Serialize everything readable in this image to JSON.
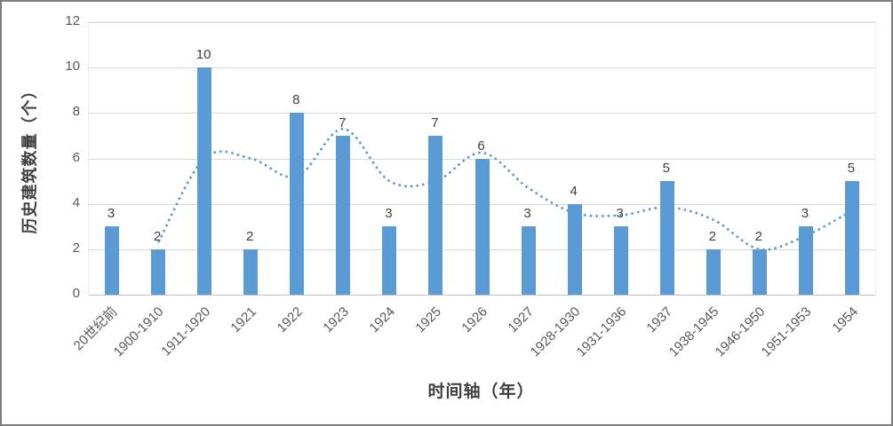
{
  "colors": {
    "bar": "#5b9bd5",
    "trend_line": "#5b9bd5",
    "gridline": "#d9d9d9",
    "axis_line": "#bfbfbf",
    "tick_text": "#595959",
    "data_label_text": "#404040",
    "title_text": "#404040",
    "plot_border": "#e7eef7",
    "frame_border": "#7d7d7d",
    "background": "#ffffff"
  },
  "chart_data": {
    "type": "bar",
    "title": "",
    "xlabel": "时间轴（年）",
    "ylabel": "历史建筑数量（个）",
    "ylim": [
      0,
      12
    ],
    "yticks": [
      0,
      2,
      4,
      6,
      8,
      10,
      12
    ],
    "grid": true,
    "legend": "none",
    "categories": [
      "20世纪前",
      "1900-1910",
      "1911-1920",
      "1921",
      "1922",
      "1923",
      "1924",
      "1925",
      "1926",
      "1927",
      "1928-1930",
      "1931-1936",
      "1937",
      "1938-1945",
      "1946-1950",
      "1951-1953",
      "1954"
    ],
    "series": [
      {
        "id": "bars",
        "type": "bar",
        "color": "#5b9bd5",
        "data_labels_shown": true,
        "values": [
          3,
          2,
          10,
          2,
          8,
          7,
          3,
          7,
          6,
          3,
          4,
          3,
          5,
          2,
          2,
          3,
          5
        ]
      },
      {
        "id": "trend",
        "type": "line",
        "style": "dotted",
        "smooth": true,
        "color": "#5b9bd5",
        "values": [
          null,
          2.3,
          6,
          6,
          5.2,
          7.3,
          5,
          5,
          6.25,
          4.7,
          3.6,
          3.5,
          3.85,
          3.3,
          2,
          2.6,
          3.7
        ]
      }
    ]
  }
}
